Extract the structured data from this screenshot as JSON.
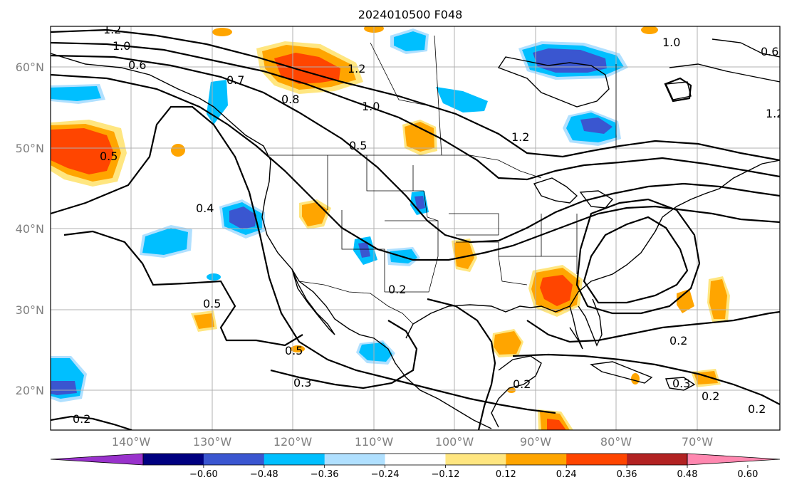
{
  "title": "2024010500 F048",
  "lat_labels": [
    "60°N",
    "50°N",
    "40°N",
    "30°N",
    "20°N"
  ],
  "lon_labels": [
    "140°W",
    "130°W",
    "120°W",
    "110°W",
    "100°W",
    "90°W",
    "80°W",
    "70°W"
  ],
  "colorbar": {
    "ticks": [
      "−0.60",
      "−0.48",
      "−0.36",
      "−0.24",
      "−0.12",
      "0.12",
      "0.24",
      "0.36",
      "0.48",
      "0.60"
    ],
    "colors": [
      "#9932cc",
      "#000080",
      "#3a56d0",
      "#00bfff",
      "#b0e0ff",
      "#ffffff",
      "#ffe680",
      "#ffa500",
      "#ff4500",
      "#b22222",
      "#ff88b0"
    ]
  },
  "contour_labels": [
    "1.2",
    "1.0",
    "0.6",
    "0.7",
    "0.8",
    "1.2",
    "1.0",
    "0.5",
    "1.2",
    "1.0",
    "0.6",
    "1.2",
    "0.4",
    "0.5",
    "0.5",
    "0.3",
    "0.2",
    "0.2",
    "0.2",
    "0.3",
    "0.2",
    "0.2",
    "0.2",
    "0.5"
  ],
  "anomaly_colors": {
    "pos_weak": "#ffe680",
    "pos_mid": "#ffa500",
    "pos_strong": "#ff4500",
    "neg_weak": "#b0e0ff",
    "neg_mid": "#00bfff",
    "neg_strong": "#3a56d0"
  }
}
